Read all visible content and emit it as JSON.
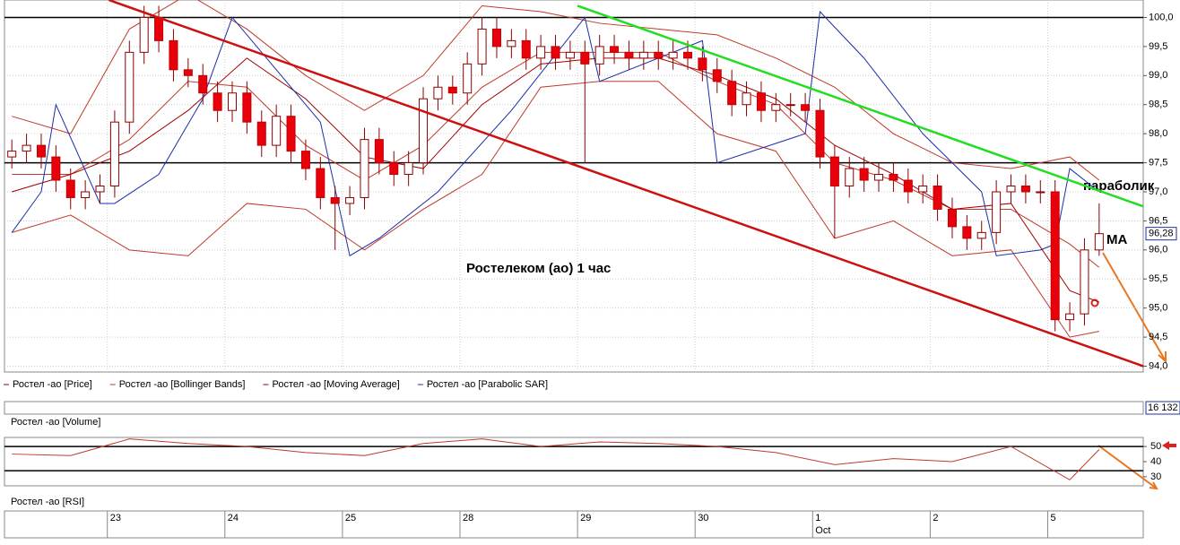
{
  "chart_data": {
    "type": "candlestick",
    "title": "Ростелеком (ао)   1 час",
    "xlim": [
      -0.5,
      77
    ],
    "ylim": [
      93.9,
      100.3
    ],
    "yticks": [
      {
        "value": 94.0,
        "label": "94,0"
      },
      {
        "value": 94.5,
        "label": "94,5"
      },
      {
        "value": 95.0,
        "label": "95,0"
      },
      {
        "value": 95.5,
        "label": "95,5"
      },
      {
        "value": 96.0,
        "label": "96,0"
      },
      {
        "value": 96.5,
        "label": "96,5"
      },
      {
        "value": 97.0,
        "label": "97,0"
      },
      {
        "value": 97.5,
        "label": "97,5"
      },
      {
        "value": 98.0,
        "label": "98,0"
      },
      {
        "value": 98.5,
        "label": "98,5"
      },
      {
        "value": 99.0,
        "label": "99,0"
      },
      {
        "value": 99.5,
        "label": "99,5"
      },
      {
        "value": 100.0,
        "label": "100,0"
      }
    ],
    "grid": true,
    "xticks": [
      {
        "value": 6.5,
        "label": "23"
      },
      {
        "value": 14.5,
        "label": "24"
      },
      {
        "value": 22.5,
        "label": "25"
      },
      {
        "value": 30.5,
        "label": "28"
      },
      {
        "value": 38.5,
        "label": "29"
      },
      {
        "value": 46.5,
        "label": "30"
      },
      {
        "value": 54.5,
        "label": "1"
      },
      {
        "value": 62.5,
        "label": "2"
      },
      {
        "value": 70.5,
        "label": "5"
      }
    ],
    "month_label": "Oct",
    "open": [
      97.6,
      97.7,
      97.8,
      97.6,
      97.2,
      96.9,
      97.0,
      97.1,
      98.2,
      99.4,
      100.0,
      99.6,
      99.1,
      99.0,
      98.7,
      98.4,
      98.7,
      98.2,
      97.8,
      98.3,
      97.7,
      97.4,
      96.9,
      96.8,
      96.9,
      97.9,
      97.5,
      97.3,
      97.5,
      98.6,
      98.8,
      98.7,
      99.2,
      99.8,
      99.5,
      99.6,
      99.3,
      99.5,
      99.3,
      99.4,
      99.2,
      99.5,
      99.4,
      99.3,
      99.4,
      99.3,
      99.4,
      99.3,
      99.1,
      98.9,
      98.5,
      98.7,
      98.4,
      98.5,
      98.5,
      98.4,
      97.6,
      97.1,
      97.4,
      97.2,
      97.3,
      97.2,
      97.0,
      97.1,
      96.7,
      96.4,
      96.2,
      96.3,
      97.0,
      97.1,
      97.0,
      97.0,
      94.8,
      94.9,
      96.0
    ],
    "high": [
      97.9,
      98.0,
      98.0,
      97.8,
      97.4,
      97.2,
      97.3,
      98.4,
      99.6,
      100.2,
      100.2,
      99.8,
      99.3,
      99.2,
      98.9,
      98.9,
      98.9,
      98.4,
      98.5,
      98.5,
      97.9,
      97.6,
      97.1,
      97.1,
      98.1,
      98.1,
      97.7,
      97.7,
      98.8,
      99.0,
      99.0,
      99.4,
      100.0,
      100.0,
      99.8,
      99.8,
      99.7,
      99.7,
      99.6,
      99.6,
      99.7,
      99.7,
      99.6,
      99.6,
      99.6,
      99.6,
      99.6,
      99.5,
      99.3,
      99.1,
      98.9,
      98.9,
      98.7,
      98.7,
      98.7,
      98.6,
      97.8,
      97.6,
      97.6,
      97.5,
      97.5,
      97.4,
      97.3,
      97.3,
      96.9,
      96.6,
      96.5,
      97.2,
      97.3,
      97.3,
      97.2,
      97.2,
      95.1,
      96.2,
      96.8
    ],
    "low": [
      97.4,
      97.5,
      97.4,
      97.0,
      96.7,
      96.7,
      96.8,
      96.9,
      98.0,
      99.2,
      99.4,
      98.9,
      98.8,
      98.5,
      98.2,
      98.2,
      98.0,
      97.6,
      97.6,
      97.5,
      97.2,
      96.7,
      96.0,
      96.6,
      96.7,
      97.3,
      97.1,
      97.1,
      97.3,
      98.4,
      98.5,
      98.5,
      99.0,
      99.3,
      99.3,
      99.1,
      99.1,
      99.1,
      99.1,
      97.5,
      99.0,
      99.2,
      99.1,
      99.1,
      99.1,
      99.1,
      99.1,
      98.9,
      98.7,
      98.3,
      98.3,
      98.2,
      98.2,
      98.3,
      98.2,
      97.4,
      96.2,
      96.9,
      97.0,
      97.0,
      97.0,
      96.8,
      96.8,
      96.5,
      96.2,
      96.0,
      96.0,
      96.1,
      96.8,
      96.8,
      96.8,
      94.6,
      94.6,
      94.7,
      95.9
    ],
    "close": [
      97.7,
      97.8,
      97.6,
      97.2,
      96.9,
      97.0,
      97.1,
      98.2,
      99.4,
      100.0,
      99.6,
      99.1,
      99.0,
      98.7,
      98.4,
      98.7,
      98.2,
      97.8,
      98.3,
      97.7,
      97.4,
      96.9,
      96.8,
      96.9,
      97.9,
      97.5,
      97.3,
      97.5,
      98.6,
      98.8,
      98.7,
      99.2,
      99.8,
      99.5,
      99.6,
      99.3,
      99.5,
      99.3,
      99.4,
      99.2,
      99.5,
      99.4,
      99.3,
      99.4,
      99.3,
      99.4,
      99.3,
      99.1,
      98.9,
      98.5,
      98.7,
      98.4,
      98.5,
      98.5,
      98.4,
      97.6,
      97.1,
      97.4,
      97.2,
      97.3,
      97.2,
      97.0,
      97.1,
      96.7,
      96.4,
      96.2,
      96.3,
      97.0,
      97.1,
      97.0,
      97.0,
      94.8,
      94.9,
      96.0,
      96.28
    ],
    "last_price": {
      "value": 96.28,
      "label": "96,28"
    },
    "series": [
      {
        "name": "Ростел -ао [Bollinger Bands]",
        "color": "#c0392b",
        "x": [
          0,
          4,
          8,
          12,
          16,
          20,
          24,
          28,
          32,
          36,
          40,
          44,
          48,
          52,
          56,
          60,
          64,
          68,
          72,
          74
        ],
        "values": [
          98.3,
          98.0,
          99.8,
          100.4,
          99.8,
          99.0,
          98.4,
          99.0,
          100.2,
          100.1,
          99.9,
          99.8,
          99.7,
          99.3,
          98.8,
          98.0,
          97.5,
          97.4,
          97.6,
          97.2
        ]
      },
      {
        "name": "Ростел -ао [Bollinger Bands]",
        "color": "#c0392b",
        "x": [
          0,
          4,
          8,
          12,
          16,
          20,
          24,
          28,
          32,
          36,
          40,
          44,
          48,
          52,
          56,
          60,
          64,
          68,
          72,
          74
        ],
        "values": [
          96.3,
          96.6,
          96.0,
          95.9,
          96.8,
          96.7,
          96.0,
          96.7,
          97.3,
          98.8,
          98.9,
          98.9,
          98.0,
          97.7,
          96.2,
          96.5,
          95.9,
          96.0,
          94.5,
          94.6
        ]
      },
      {
        "name": "Ростел -ао [Bollinger Bands]",
        "color": "#c0392b",
        "x": [
          0,
          4,
          8,
          12,
          16,
          20,
          24,
          28,
          32,
          36,
          40,
          44,
          48,
          52,
          56,
          60,
          64,
          68,
          72,
          74
        ],
        "values": [
          97.3,
          97.3,
          97.9,
          98.9,
          98.8,
          97.8,
          97.2,
          97.8,
          98.8,
          99.4,
          99.4,
          99.4,
          98.9,
          98.5,
          97.5,
          97.2,
          96.7,
          96.7,
          96.1,
          95.7
        ]
      },
      {
        "name": "Ростел -ао [Moving Average]",
        "color": "#a00000",
        "x": [
          0,
          4,
          8,
          12,
          16,
          20,
          24,
          28,
          32,
          36,
          40,
          44,
          48,
          52,
          56,
          60,
          64,
          68,
          72,
          74
        ],
        "values": [
          97.0,
          97.3,
          97.7,
          98.4,
          99.3,
          98.6,
          97.6,
          97.4,
          98.5,
          99.2,
          99.3,
          99.3,
          99.0,
          98.6,
          97.8,
          97.3,
          96.7,
          96.8,
          95.3,
          95.1
        ]
      },
      {
        "name": "Ростел -ао [Parabolic SAR]",
        "color": "#1a2fa8",
        "x": [
          0,
          2,
          3,
          6,
          7,
          10,
          13,
          15,
          21,
          23,
          25,
          29,
          34,
          39,
          40,
          46,
          47,
          48,
          54,
          55,
          58,
          62,
          66,
          67,
          70,
          71,
          72,
          74
        ],
        "values": [
          96.3,
          97.0,
          98.5,
          96.8,
          96.8,
          97.3,
          98.6,
          100.0,
          98.2,
          95.9,
          96.2,
          97.0,
          98.4,
          100.0,
          98.9,
          99.5,
          99.6,
          97.5,
          98.0,
          100.1,
          99.3,
          98.0,
          97.0,
          95.9,
          96.0,
          96.1,
          97.4,
          97.0
        ]
      }
    ],
    "price_legend": "Ростел -ао [Price]",
    "hlines": [
      100.0,
      97.5
    ],
    "trendlines": [
      {
        "color": "#cc1111",
        "x": [
          6.6,
          77
        ],
        "values": [
          100.3,
          94.0
        ]
      },
      {
        "color": "#22dd22",
        "x": [
          38.5,
          77
        ],
        "values": [
          100.2,
          96.75
        ]
      }
    ],
    "annotations": [
      "параболик",
      "MA"
    ],
    "volume": {
      "label": "Ростел -ао [Volume]",
      "last": {
        "value": 16132,
        "label": "16 132"
      }
    },
    "rsi": {
      "label": "Ростел -ао [RSI]",
      "ylim": [
        24,
        56
      ],
      "yticks": [
        50,
        40,
        30
      ],
      "hlines": [
        50,
        34
      ],
      "color": "#c0392b",
      "x": [
        0,
        4,
        8,
        12,
        16,
        20,
        24,
        28,
        32,
        36,
        40,
        44,
        48,
        52,
        56,
        60,
        64,
        68,
        72,
        74
      ],
      "values": [
        45,
        44,
        55,
        52,
        50,
        46,
        44,
        52,
        55,
        50,
        53,
        52,
        50,
        46,
        38,
        42,
        40,
        50,
        28,
        48
      ]
    }
  }
}
